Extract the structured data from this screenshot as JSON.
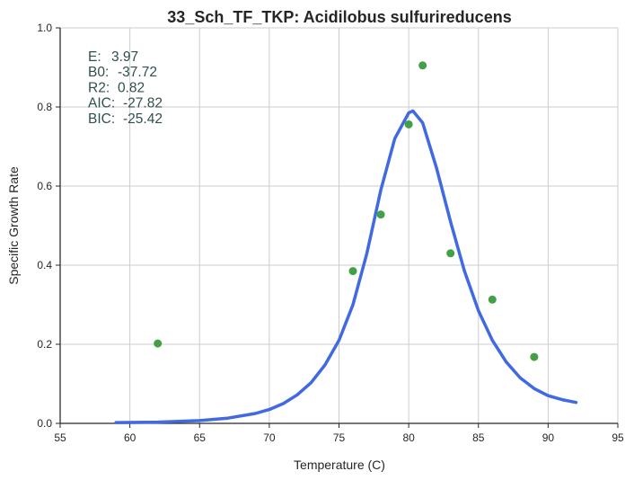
{
  "chart_data": {
    "type": "scatter",
    "title": "33_Sch_TF_TKP: Acidilobus sulfurireducens",
    "xlabel": "Temperature (C)",
    "ylabel": "Specific Growth Rate",
    "xlim": [
      55,
      95
    ],
    "ylim": [
      0.0,
      1.0
    ],
    "xticks": [
      "55",
      "60",
      "65",
      "70",
      "75",
      "80",
      "85",
      "90",
      "95"
    ],
    "yticks": [
      "0.0",
      "0.2",
      "0.4",
      "0.6",
      "0.8",
      "1.0"
    ],
    "grid": true,
    "colors": {
      "points": "#43a047",
      "curve": "#4169e1",
      "stats": "#2f4f4f",
      "grid": "#cccccc",
      "axis": "#262626"
    },
    "annotations": [
      {
        "label": "E:",
        "value": "3.97"
      },
      {
        "label": "B0:",
        "value": "-37.72"
      },
      {
        "label": "R2:",
        "value": "0.82"
      },
      {
        "label": "AIC:",
        "value": "-27.82"
      },
      {
        "label": "BIC:",
        "value": "-25.42"
      }
    ],
    "series": [
      {
        "type": "scatter",
        "x": [
          62,
          76,
          78,
          80,
          81,
          83,
          86,
          89
        ],
        "y": [
          0.202,
          0.385,
          0.528,
          0.756,
          0.905,
          0.43,
          0.313,
          0.168
        ]
      },
      {
        "type": "line",
        "x": [
          59,
          62,
          65,
          67,
          69,
          70,
          71,
          72,
          73,
          74,
          75,
          76,
          77,
          78,
          79,
          80,
          80.3,
          81,
          82,
          83,
          84,
          85,
          86,
          87,
          88,
          89,
          90,
          91,
          92
        ],
        "y": [
          0.002,
          0.003,
          0.007,
          0.013,
          0.025,
          0.035,
          0.05,
          0.072,
          0.103,
          0.148,
          0.21,
          0.3,
          0.43,
          0.59,
          0.72,
          0.785,
          0.79,
          0.76,
          0.645,
          0.51,
          0.385,
          0.285,
          0.21,
          0.155,
          0.115,
          0.088,
          0.07,
          0.06,
          0.053
        ]
      }
    ]
  }
}
